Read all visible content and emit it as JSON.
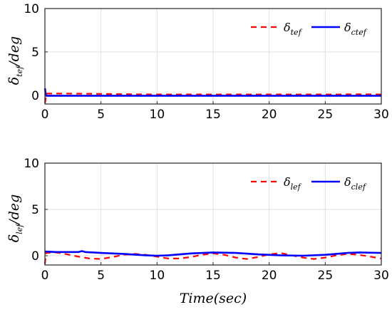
{
  "chart_data": [
    {
      "type": "line",
      "xlabel": "",
      "ylabel": {
        "main": "δ",
        "sub": "tef",
        "unit": "/deg"
      },
      "xlim": [
        0,
        30
      ],
      "ylim": [
        -1,
        10
      ],
      "xticks": [
        "0",
        "5",
        "10",
        "15",
        "20",
        "25",
        "30"
      ],
      "yticks": [
        "0",
        "5",
        "10"
      ],
      "grid": true,
      "legend_position": "top-right",
      "series": [
        {
          "name": "tef",
          "label_main": "δ",
          "label_sub": "tef",
          "color": "#ff0000",
          "style": "dashed",
          "x": [
            0,
            0.05,
            0.1,
            0.3,
            2,
            4,
            6,
            8,
            10,
            12,
            14,
            16,
            18,
            20,
            22,
            24,
            26,
            28,
            30
          ],
          "y": [
            -0.9,
            -0.6,
            0.2,
            0.2,
            0.2,
            0.18,
            0.15,
            0.12,
            0.1,
            0.1,
            0.1,
            0.1,
            0.1,
            0.1,
            0.1,
            0.1,
            0.1,
            0.12,
            0.1
          ]
        },
        {
          "name": "ctef",
          "label_main": "δ",
          "label_sub": "ctef",
          "color": "#0000ff",
          "style": "solid",
          "x": [
            0,
            0.02,
            0.05,
            0.1,
            0.3,
            2,
            5,
            10,
            15,
            20,
            25,
            30
          ],
          "y": [
            0.8,
            0.7,
            0.3,
            -0.05,
            -0.05,
            -0.05,
            -0.05,
            -0.05,
            -0.05,
            -0.05,
            -0.05,
            -0.05
          ]
        }
      ]
    },
    {
      "type": "line",
      "xlabel": "Time(sec)",
      "ylabel": {
        "main": "δ",
        "sub": "lef",
        "unit": "/deg"
      },
      "xlim": [
        0,
        30
      ],
      "ylim": [
        -1,
        10
      ],
      "xticks": [
        "0",
        "5",
        "10",
        "15",
        "20",
        "25",
        "30"
      ],
      "yticks": [
        "0",
        "5",
        "10"
      ],
      "grid": true,
      "legend_position": "top-right",
      "series": [
        {
          "name": "lef",
          "label_main": "δ",
          "label_sub": "lef",
          "color": "#ff0000",
          "style": "dashed",
          "x": [
            0,
            0.1,
            1,
            2,
            3,
            4,
            5,
            6,
            7,
            8,
            9,
            10,
            11,
            12,
            13,
            14,
            15,
            16,
            17,
            18,
            19,
            20,
            21,
            22,
            23,
            24,
            25,
            26,
            27,
            28,
            29,
            30
          ],
          "y": [
            -0.9,
            0.3,
            0.35,
            0.15,
            -0.1,
            -0.3,
            -0.35,
            -0.15,
            0.1,
            0.2,
            0.1,
            -0.1,
            -0.3,
            -0.3,
            -0.15,
            0.1,
            0.25,
            0.1,
            -0.2,
            -0.35,
            -0.15,
            0.15,
            0.3,
            0.05,
            -0.2,
            -0.35,
            -0.2,
            0.05,
            0.2,
            0.1,
            -0.1,
            -0.3
          ]
        },
        {
          "name": "clef",
          "label_main": "δ",
          "label_sub": "clef",
          "color": "#0000ff",
          "style": "solid",
          "x": [
            0,
            0.05,
            1,
            2,
            3,
            3.3,
            3.6,
            5,
            7,
            9,
            10,
            11,
            13,
            15,
            17,
            19,
            21,
            23,
            25,
            27,
            28,
            30
          ],
          "y": [
            0.5,
            0.45,
            0.4,
            0.4,
            0.4,
            0.5,
            0.4,
            0.3,
            0.2,
            0.05,
            0.0,
            0.05,
            0.25,
            0.35,
            0.3,
            0.15,
            0.05,
            0.0,
            0.1,
            0.3,
            0.35,
            0.3
          ]
        }
      ]
    }
  ]
}
